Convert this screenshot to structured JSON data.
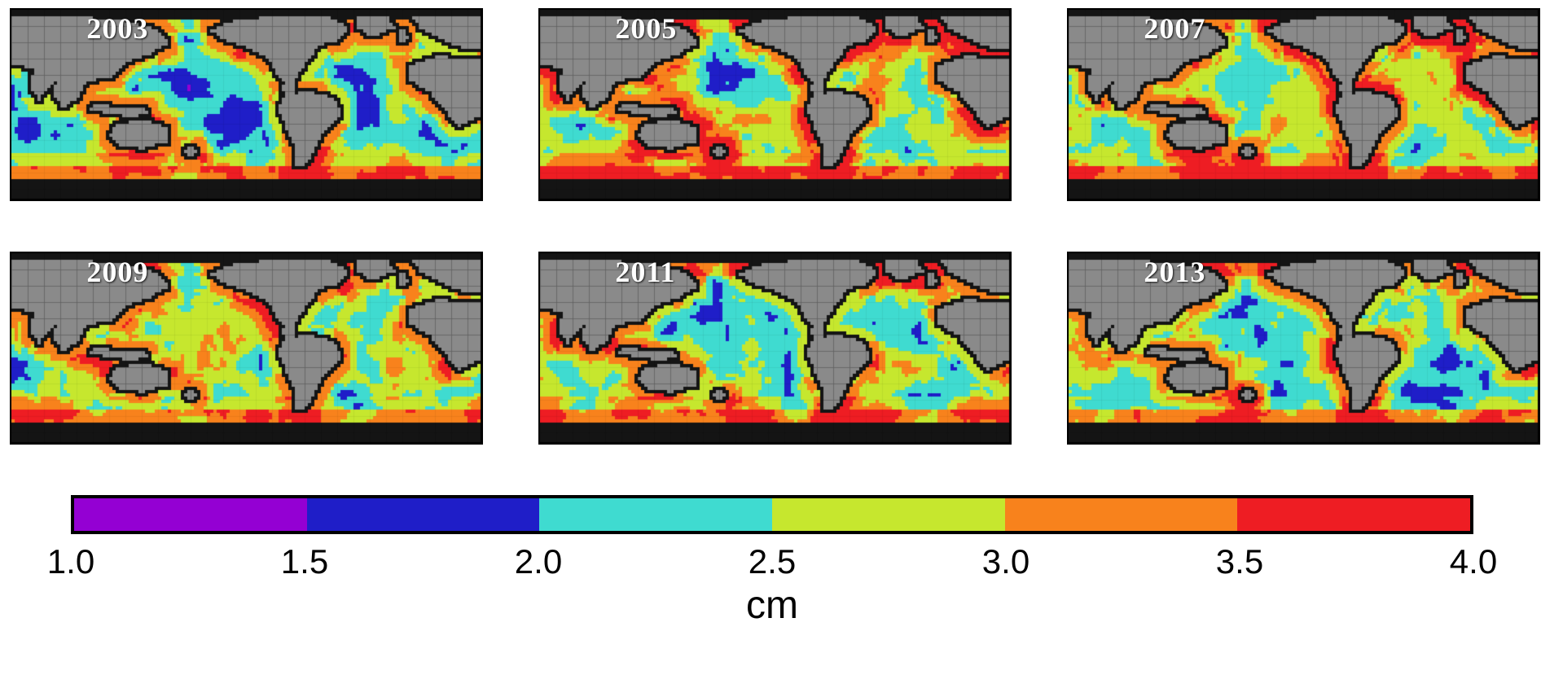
{
  "figure": {
    "panels": [
      {
        "year": "2003"
      },
      {
        "year": "2005"
      },
      {
        "year": "2007"
      },
      {
        "year": "2009"
      },
      {
        "year": "2011"
      },
      {
        "year": "2013"
      }
    ],
    "colorbar": {
      "ticks": [
        "1.0",
        "1.5",
        "2.0",
        "2.5",
        "3.0",
        "3.5",
        "4.0"
      ],
      "unit_label": "cm",
      "bin_colors": [
        "#9400d3",
        "#1f1ec8",
        "#3fdbd0",
        "#c6e72e",
        "#f8821c",
        "#ee1d23"
      ]
    },
    "map_colors": {
      "land": "#8a8a8a",
      "land_grid": "#6e6e6e",
      "no_data": "#141414"
    }
  },
  "chart_data": {
    "type": "heatmap",
    "title": "",
    "panels": [
      "2003",
      "2005",
      "2007",
      "2009",
      "2011",
      "2013"
    ],
    "layout": "2 rows x 3 columns of global Pacific-centered maps sharing one horizontal discrete colorbar",
    "unit": "cm",
    "colorbar": {
      "bin_edges": [
        1.0,
        1.5,
        2.0,
        2.5,
        3.0,
        3.5,
        4.0
      ],
      "bin_colors": [
        "#9400d3",
        "#1f1ec8",
        "#3fdbd0",
        "#c6e72e",
        "#f8821c",
        "#ee1d23"
      ],
      "orientation": "horizontal",
      "tick_labels": [
        "1.0",
        "1.5",
        "2.0",
        "2.5",
        "3.0",
        "3.5",
        "4.0"
      ]
    },
    "value_semantics": "Ocean field in cm, mostly 2.0-4.0 cm (cyan/green interiors, orange-red along coasts and Southern Ocean rim); continents gray with graticule; near-coast and polar strips black (no data)"
  }
}
